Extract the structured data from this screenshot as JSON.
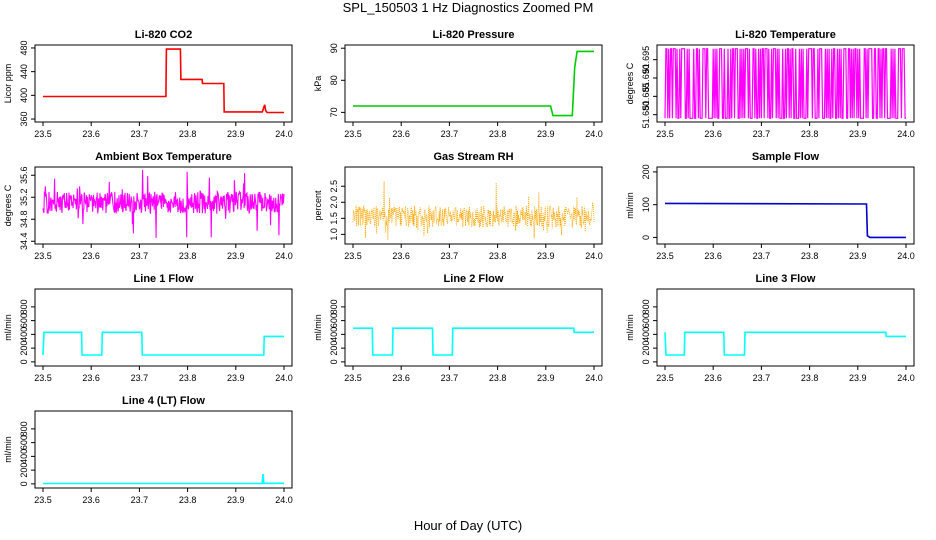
{
  "figure": {
    "title": "SPL_150503  1 Hz Diagnostics Zoomed PM",
    "xlabel": "Hour of Day (UTC)"
  },
  "chart_data": [
    {
      "type": "line",
      "title": "Li-820 CO2",
      "ylabel": "Licor ppm",
      "color": "#ff0000",
      "xlim": [
        23.5,
        24.0
      ],
      "ylim": [
        355,
        485
      ],
      "x_ticks": [
        "23.5",
        "23.6",
        "23.7",
        "23.8",
        "23.9",
        "24.0"
      ],
      "y_ticks": [
        360,
        400,
        440,
        480
      ],
      "series": [
        {
          "x": [
            23.5,
            23.755,
            23.756,
            23.785,
            23.786,
            23.83,
            23.831,
            23.875,
            23.876,
            23.955,
            23.96,
            23.962,
            23.965,
            24.0
          ],
          "values": [
            398,
            398,
            478,
            478,
            427,
            427,
            420,
            420,
            372,
            372,
            384,
            374,
            371,
            371
          ]
        }
      ]
    },
    {
      "type": "line",
      "title": "Li-820 Pressure",
      "ylabel": "kPa",
      "color": "#00cc00",
      "xlim": [
        23.5,
        24.0
      ],
      "ylim": [
        67,
        91
      ],
      "x_ticks": [
        "23.5",
        "23.6",
        "23.7",
        "23.8",
        "23.9",
        "24.0"
      ],
      "y_ticks": [
        70,
        80,
        90
      ],
      "series": [
        {
          "x": [
            23.5,
            23.91,
            23.915,
            23.955,
            23.96,
            23.965,
            24.0
          ],
          "values": [
            72,
            72,
            69,
            69,
            84,
            89,
            89
          ]
        }
      ]
    },
    {
      "type": "line",
      "title": "Li-820 Temperature",
      "ylabel": "degrees C",
      "color": "#ff00ff",
      "xlim": [
        23.5,
        24.0
      ],
      "ylim": [
        51.678,
        51.699
      ],
      "x_ticks": [
        "23.5",
        "23.6",
        "23.7",
        "23.8",
        "23.9",
        "24.0"
      ],
      "y_ticks": [
        "51.680",
        "51.685",
        "51.690",
        "51.695"
      ],
      "series": [
        {
          "pattern": "toggle",
          "values": [
            51.679,
            51.698
          ]
        }
      ]
    },
    {
      "type": "line",
      "title": "Ambient Box Temperature",
      "ylabel": "degrees C",
      "color": "#ff00ff",
      "xlim": [
        23.5,
        24.0
      ],
      "ylim": [
        34.35,
        35.75
      ],
      "x_ticks": [
        "23.5",
        "23.6",
        "23.7",
        "23.8",
        "23.9",
        "24.0"
      ],
      "y_ticks": [
        "34.4",
        "34.8",
        "35.2",
        "35.6"
      ],
      "series": [
        {
          "pattern": "noise",
          "values": [
            34.9,
            35.3,
            34.45,
            35.7
          ]
        }
      ]
    },
    {
      "type": "scatter",
      "title": "Gas Stream RH",
      "ylabel": "percent",
      "color": "#ffa500",
      "xlim": [
        23.5,
        24.0
      ],
      "ylim": [
        0.7,
        3.1
      ],
      "x_ticks": [
        "23.5",
        "23.6",
        "23.7",
        "23.8",
        "23.9",
        "24.0"
      ],
      "y_ticks": [
        "1.0",
        "1.5",
        "2.0",
        "2.5"
      ],
      "series": [
        {
          "pattern": "noise",
          "values": [
            1.2,
            1.9,
            0.8,
            3.0
          ]
        }
      ]
    },
    {
      "type": "line",
      "title": "Sample Flow",
      "ylabel": "ml/min",
      "color": "#0000cc",
      "xlim": [
        23.5,
        24.0
      ],
      "ylim": [
        -20,
        215
      ],
      "x_ticks": [
        "23.5",
        "23.6",
        "23.7",
        "23.8",
        "23.9",
        "24.0"
      ],
      "y_ticks": [
        0,
        100,
        200
      ],
      "series": [
        {
          "x": [
            23.5,
            23.918,
            23.92,
            23.925,
            24.0
          ],
          "values": [
            104,
            102,
            5,
            0,
            0
          ]
        }
      ]
    },
    {
      "type": "line",
      "title": "Line 1 Flow",
      "ylabel": "ml/min",
      "color": "#00ffff",
      "xlim": [
        23.5,
        24.0
      ],
      "ylim": [
        -60,
        1060
      ],
      "x_ticks": [
        "23.5",
        "23.6",
        "23.7",
        "23.8",
        "23.9",
        "24.0"
      ],
      "y_ticks": [
        0,
        200,
        400,
        600,
        800
      ],
      "series": [
        {
          "x": [
            23.5,
            23.502,
            23.58,
            23.581,
            23.622,
            23.623,
            23.705,
            23.706,
            23.958,
            23.959,
            24.0
          ],
          "values": [
            100,
            430,
            430,
            100,
            100,
            430,
            430,
            100,
            100,
            370,
            370
          ]
        }
      ]
    },
    {
      "type": "line",
      "title": "Line 2 Flow",
      "ylabel": "ml/min",
      "color": "#00ffff",
      "xlim": [
        23.5,
        24.0
      ],
      "ylim": [
        -60,
        1060
      ],
      "x_ticks": [
        "23.5",
        "23.6",
        "23.7",
        "23.8",
        "23.9",
        "24.0"
      ],
      "y_ticks": [
        0,
        200,
        400,
        600,
        800
      ],
      "series": [
        {
          "x": [
            23.5,
            23.54,
            23.541,
            23.582,
            23.583,
            23.665,
            23.666,
            23.706,
            23.707,
            23.958,
            23.959,
            24.0
          ],
          "values": [
            490,
            490,
            100,
            100,
            490,
            490,
            100,
            100,
            490,
            490,
            430,
            430
          ]
        }
      ]
    },
    {
      "type": "line",
      "title": "Line 3 Flow",
      "ylabel": "ml/min",
      "color": "#00ffff",
      "xlim": [
        23.5,
        24.0
      ],
      "ylim": [
        -60,
        1060
      ],
      "x_ticks": [
        "23.5",
        "23.6",
        "23.7",
        "23.8",
        "23.9",
        "24.0"
      ],
      "y_ticks": [
        0,
        200,
        400,
        600,
        800
      ],
      "series": [
        {
          "x": [
            23.5,
            23.502,
            23.54,
            23.541,
            23.622,
            23.623,
            23.665,
            23.666,
            23.958,
            23.959,
            24.0
          ],
          "values": [
            430,
            100,
            100,
            430,
            430,
            100,
            100,
            430,
            430,
            370,
            370
          ]
        }
      ]
    },
    {
      "type": "line",
      "title": "Line 4 (LT) Flow",
      "ylabel": "ml/min",
      "color": "#00ffff",
      "xlim": [
        23.5,
        24.0
      ],
      "ylim": [
        -60,
        1060
      ],
      "x_ticks": [
        "23.5",
        "23.6",
        "23.7",
        "23.8",
        "23.9",
        "24.0"
      ],
      "y_ticks": [
        0,
        200,
        400,
        600,
        800
      ],
      "series": [
        {
          "x": [
            23.5,
            23.955,
            23.956,
            23.957,
            23.958,
            24.0
          ],
          "values": [
            5,
            5,
            130,
            130,
            10,
            8
          ]
        }
      ]
    }
  ]
}
